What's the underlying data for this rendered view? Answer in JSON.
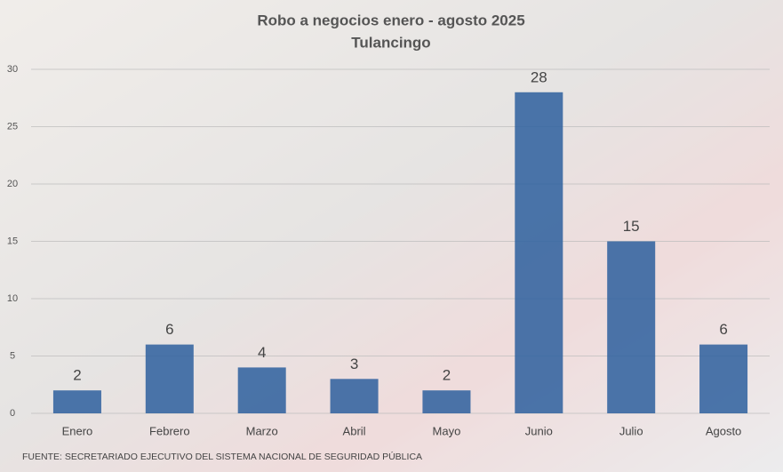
{
  "chart_data": {
    "type": "bar",
    "title": "Robo a negocios enero - agosto 2025",
    "subtitle": "Tulancingo",
    "source": "FUENTE: SECRETARIADO EJECUTIVO DEL SISTEMA NACIONAL DE SEGURIDAD PÚBLICA",
    "categories": [
      "Enero",
      "Febrero",
      "Marzo",
      "Abril",
      "Mayo",
      "Junio",
      "Julio",
      "Agosto"
    ],
    "values": [
      2,
      6,
      4,
      3,
      2,
      28,
      15,
      6
    ],
    "color": "#2d5f9e",
    "ylim": [
      0,
      30
    ],
    "yticks": [
      0,
      5,
      10,
      15,
      20,
      25,
      30
    ],
    "grid": true,
    "data_labels": true
  }
}
